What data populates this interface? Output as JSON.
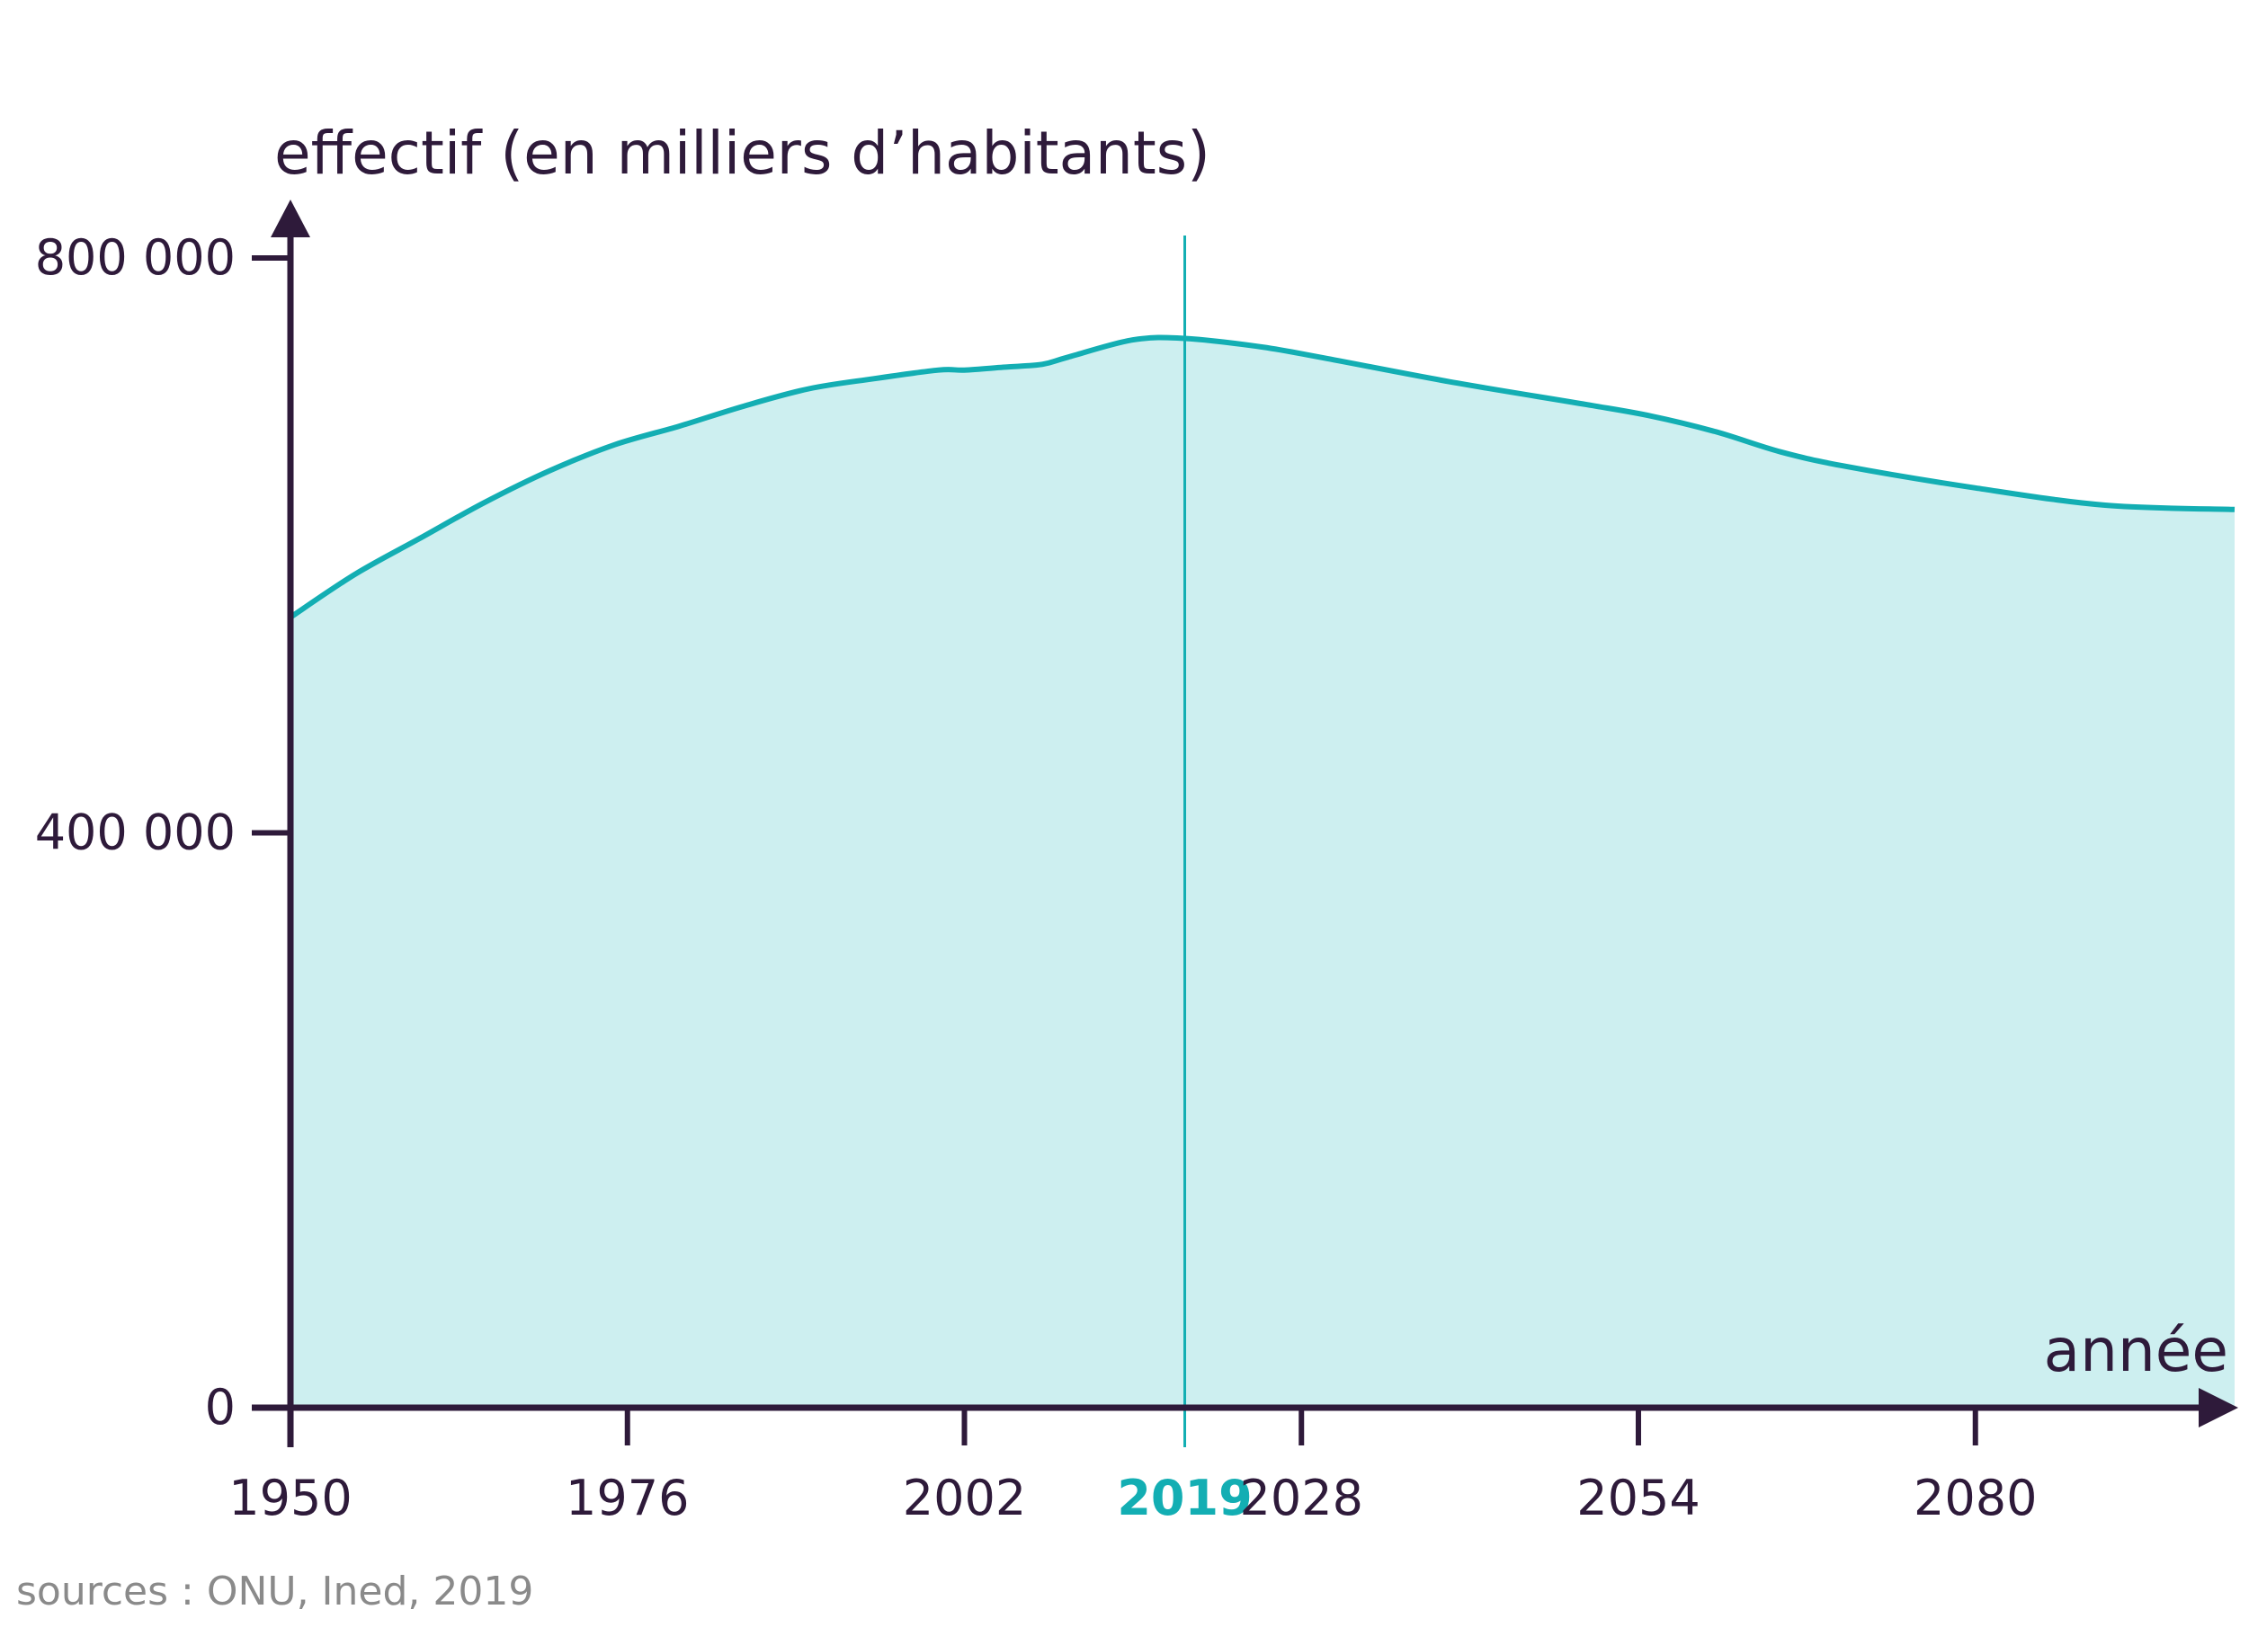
{
  "chart_data": {
    "type": "area",
    "title": "",
    "ylabel": "effectif (en milliers d’habitants)",
    "xlabel": "année",
    "xlim": [
      1950,
      2100
    ],
    "ylim": [
      0,
      800000
    ],
    "x_ticks": [
      {
        "value": 1950,
        "label": "1950"
      },
      {
        "value": 1976,
        "label": "1976"
      },
      {
        "value": 2002,
        "label": "2002"
      },
      {
        "value": 2019,
        "label": "2019",
        "highlight": true
      },
      {
        "value": 2028,
        "label": "2028"
      },
      {
        "value": 2054,
        "label": "2054"
      },
      {
        "value": 2080,
        "label": "2080"
      }
    ],
    "y_ticks": [
      {
        "value": 0,
        "label": "0"
      },
      {
        "value": 400000,
        "label": "400 000"
      },
      {
        "value": 800000,
        "label": "800 000"
      }
    ],
    "reference_line": {
      "x": 2019
    },
    "series": [
      {
        "x": [
          1950,
          1955,
          1960,
          1965,
          1970,
          1975,
          1980,
          1985,
          1990,
          1995,
          2000,
          2002,
          2005,
          2008,
          2010,
          2015,
          2019,
          2025,
          2030,
          2040,
          2050,
          2055,
          2060,
          2065,
          2070,
          2080,
          2090,
          2100
        ],
        "values": [
          550000,
          580000,
          605000,
          630000,
          652000,
          670000,
          683000,
          697000,
          709000,
          716000,
          722000,
          722000,
          724000,
          726000,
          731000,
          743000,
          744000,
          738000,
          730000,
          713000,
          698000,
          690000,
          679000,
          665000,
          655000,
          640000,
          628000,
          625000
        ]
      }
    ],
    "grid": false,
    "legend": "none",
    "colors": {
      "line": "#13aeb3",
      "fill": "#cdeff0",
      "axis": "#2e1a3a",
      "highlight": "#13aeb3"
    }
  },
  "footer": {
    "source": "sources : ONU, Ined, 2019"
  }
}
